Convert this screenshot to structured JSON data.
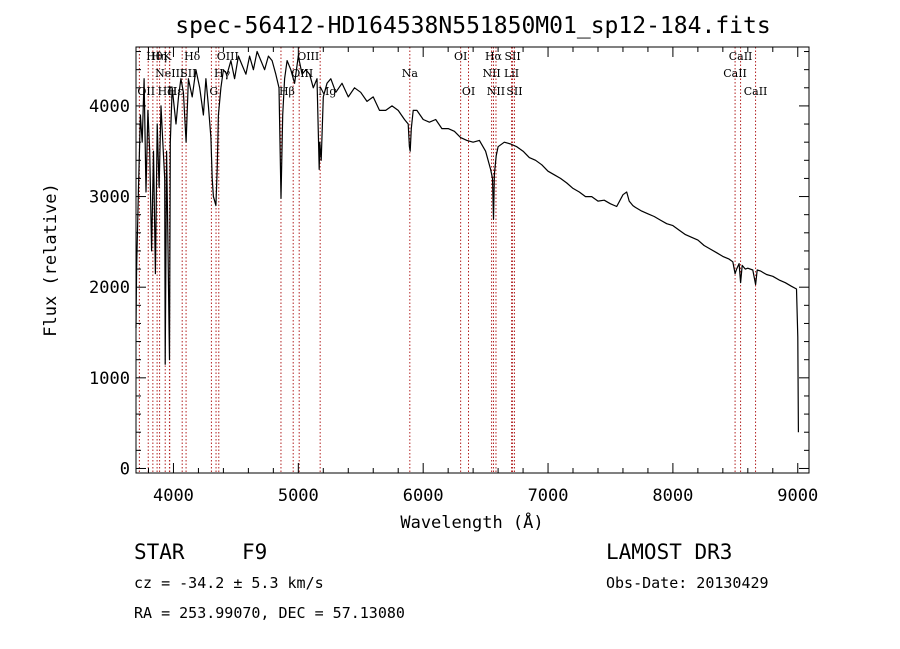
{
  "title": "spec-56412-HD164538N551850M01_sp12-184.fits",
  "info": {
    "object_class": "STAR",
    "subclass": "F9",
    "survey": "LAMOST DR3",
    "cz": "cz = -34.2 ± 5.3 km/s",
    "obs_date": "Obs-Date: 20130429",
    "coords": "RA = 253.99070, DEC =  57.13080"
  },
  "chart_data": {
    "type": "line",
    "title": "spec-56412-HD164538N551850M01_sp12-184.fits",
    "xlabel": "Wavelength (Å)",
    "ylabel": "Flux (relative)",
    "xlim": [
      3700,
      9090
    ],
    "ylim": [
      -50,
      4650
    ],
    "xticks": [
      4000,
      5000,
      6000,
      7000,
      8000,
      9000
    ],
    "yticks": [
      0,
      1000,
      2000,
      3000,
      4000
    ],
    "grid": false,
    "series": [
      {
        "name": "flux",
        "x": [
          3700,
          3705,
          3720,
          3735,
          3750,
          3765,
          3780,
          3795,
          3810,
          3825,
          3840,
          3855,
          3870,
          3885,
          3900,
          3915,
          3930,
          3934,
          3945,
          3955,
          3965,
          3968,
          3975,
          3990,
          4005,
          4020,
          4040,
          4060,
          4080,
          4101,
          4120,
          4150,
          4180,
          4210,
          4240,
          4260,
          4280,
          4300,
          4310,
          4320,
          4330,
          4340,
          4350,
          4360,
          4380,
          4400,
          4430,
          4460,
          4490,
          4520,
          4550,
          4580,
          4610,
          4640,
          4670,
          4700,
          4730,
          4760,
          4790,
          4820,
          4845,
          4861,
          4875,
          4890,
          4910,
          4940,
          4970,
          5000,
          5030,
          5060,
          5090,
          5120,
          5150,
          5167,
          5172,
          5183,
          5200,
          5230,
          5260,
          5300,
          5350,
          5400,
          5450,
          5500,
          5550,
          5600,
          5650,
          5700,
          5750,
          5800,
          5850,
          5880,
          5890,
          5896,
          5905,
          5920,
          5950,
          6000,
          6050,
          6100,
          6150,
          6200,
          6250,
          6300,
          6350,
          6400,
          6450,
          6500,
          6540,
          6555,
          6563,
          6570,
          6585,
          6600,
          6650,
          6700,
          6750,
          6800,
          6850,
          6900,
          6950,
          7000,
          7050,
          7100,
          7150,
          7200,
          7250,
          7300,
          7350,
          7400,
          7450,
          7500,
          7550,
          7600,
          7630,
          7650,
          7680,
          7700,
          7750,
          7800,
          7850,
          7900,
          7950,
          8000,
          8050,
          8100,
          8150,
          8200,
          8250,
          8300,
          8350,
          8400,
          8450,
          8480,
          8498,
          8510,
          8530,
          8542,
          8555,
          8580,
          8600,
          8640,
          8662,
          8675,
          8700,
          8750,
          8800,
          8850,
          8900,
          8950,
          8990,
          9000,
          9005
        ],
        "values": [
          1550,
          2200,
          3100,
          3900,
          3600,
          4300,
          3050,
          3950,
          3500,
          2400,
          3500,
          2150,
          3800,
          3100,
          4000,
          3600,
          3200,
          1150,
          3500,
          2600,
          1500,
          1200,
          3600,
          4200,
          4000,
          3800,
          4100,
          4300,
          4150,
          3600,
          4300,
          4100,
          4400,
          4200,
          3900,
          4300,
          4000,
          3650,
          3200,
          3000,
          2950,
          2900,
          3300,
          3900,
          4200,
          4400,
          4350,
          4500,
          4300,
          4550,
          4450,
          4350,
          4550,
          4400,
          4600,
          4500,
          4400,
          4550,
          4500,
          4350,
          4200,
          2980,
          3900,
          4300,
          4500,
          4400,
          4250,
          4550,
          4350,
          4400,
          4350,
          4200,
          4300,
          3300,
          3600,
          3400,
          4100,
          4250,
          4300,
          4150,
          4250,
          4100,
          4200,
          4150,
          4050,
          4100,
          3950,
          3950,
          4000,
          3950,
          3850,
          3800,
          3550,
          3500,
          3750,
          3950,
          3950,
          3850,
          3820,
          3850,
          3750,
          3750,
          3720,
          3650,
          3620,
          3600,
          3620,
          3500,
          3300,
          3200,
          2750,
          3250,
          3450,
          3550,
          3600,
          3580,
          3550,
          3500,
          3430,
          3400,
          3350,
          3280,
          3240,
          3200,
          3150,
          3090,
          3050,
          3000,
          3000,
          2950,
          2960,
          2920,
          2890,
          3020,
          3050,
          2950,
          2900,
          2880,
          2840,
          2810,
          2780,
          2740,
          2700,
          2680,
          2630,
          2580,
          2550,
          2520,
          2460,
          2420,
          2380,
          2340,
          2310,
          2280,
          2150,
          2200,
          2260,
          2050,
          2240,
          2200,
          2210,
          2190,
          2030,
          2190,
          2180,
          2140,
          2120,
          2080,
          2050,
          2010,
          1980,
          1450,
          400
        ]
      }
    ],
    "spectral_lines": [
      {
        "label": "OII",
        "wavelength": 3727,
        "row": 2,
        "align": "start"
      },
      {
        "label": "Hθ",
        "wavelength": 3798,
        "row": 0,
        "align": "start"
      },
      {
        "label": "Hη",
        "wavelength": 3835,
        "row": 0,
        "align": "start"
      },
      {
        "label": "NeIII",
        "wavelength": 3869,
        "row": 1,
        "align": "start"
      },
      {
        "label": "Hζ",
        "wavelength": 3889,
        "row": 2,
        "align": "start"
      },
      {
        "label": "K",
        "wavelength": 3934,
        "row": 0,
        "align": "start"
      },
      {
        "label": "H",
        "wavelength": 3968,
        "row": 2,
        "align": "start"
      },
      {
        "label": "Hε",
        "wavelength": 3970,
        "row": 2,
        "align": "start"
      },
      {
        "label": "Hδ",
        "wavelength": 4101,
        "row": 0,
        "align": "start"
      },
      {
        "label": "SII",
        "wavelength": 4070,
        "row": 1,
        "align": "start"
      },
      {
        "label": "G",
        "wavelength": 4304,
        "row": 2,
        "align": "start"
      },
      {
        "label": "Hγ",
        "wavelength": 4341,
        "row": 1,
        "align": "start"
      },
      {
        "label": "OIII",
        "wavelength": 4363,
        "row": 0,
        "align": "start"
      },
      {
        "label": "Hβ",
        "wavelength": 4861,
        "row": 2,
        "align": "start"
      },
      {
        "label": "OIII",
        "wavelength": 4959,
        "row": 1,
        "align": "start"
      },
      {
        "label": "OIII",
        "wavelength": 5007,
        "row": 0,
        "align": "start"
      },
      {
        "label": "Mg",
        "wavelength": 5175,
        "row": 2,
        "align": "start"
      },
      {
        "label": "Na",
        "wavelength": 5893,
        "row": 1,
        "align": "middle"
      },
      {
        "label": "OI",
        "wavelength": 6300,
        "row": 0,
        "align": "middle"
      },
      {
        "label": "OI",
        "wavelength": 6363,
        "row": 2,
        "align": "middle"
      },
      {
        "label": "NII",
        "wavelength": 6548,
        "row": 1,
        "align": "middle"
      },
      {
        "label": "Hα",
        "wavelength": 6563,
        "row": 0,
        "align": "middle"
      },
      {
        "label": "NII",
        "wavelength": 6583,
        "row": 2,
        "align": "middle"
      },
      {
        "label": "LiI",
        "wavelength": 6708,
        "row": 1,
        "align": "middle"
      },
      {
        "label": "SII",
        "wavelength": 6716,
        "row": 0,
        "align": "middle"
      },
      {
        "label": "SII",
        "wavelength": 6731,
        "row": 2,
        "align": "middle"
      },
      {
        "label": "CaII",
        "wavelength": 8498,
        "row": 1,
        "align": "middle"
      },
      {
        "label": "CaII",
        "wavelength": 8542,
        "row": 0,
        "align": "middle"
      },
      {
        "label": "CaII",
        "wavelength": 8662,
        "row": 2,
        "align": "middle"
      }
    ]
  }
}
